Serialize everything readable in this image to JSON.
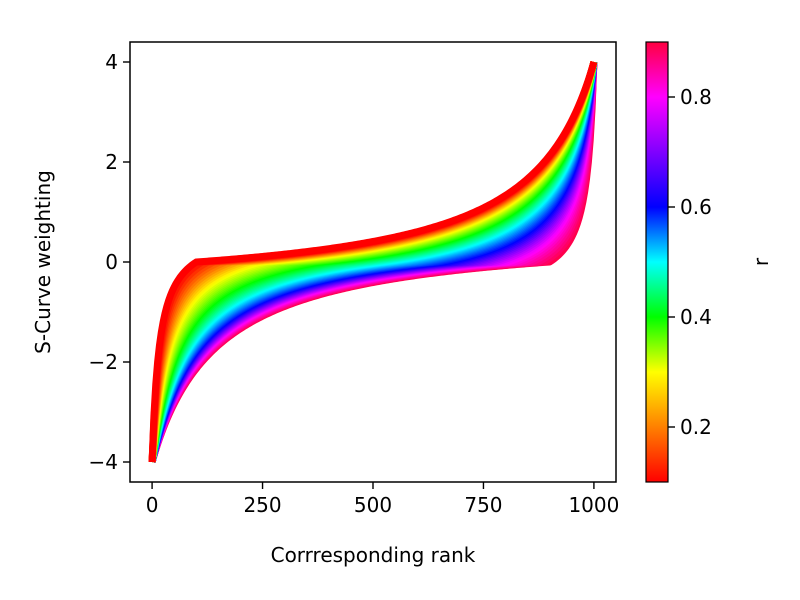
{
  "chart_data": {
    "type": "line",
    "title": "",
    "xlabel": "Corrresponding rank",
    "ylabel": "S-Curve weighting",
    "xlim": [
      -50,
      1050
    ],
    "ylim": [
      -4.4,
      4.4
    ],
    "xticks": [
      0,
      250,
      500,
      750,
      1000
    ],
    "xtick_labels": [
      "0",
      "250",
      "500",
      "750",
      "1000"
    ],
    "yticks": [
      -4,
      -2,
      0,
      2,
      4
    ],
    "ytick_labels": [
      "−4",
      "−2",
      "0",
      "2",
      "4"
    ],
    "grid": false,
    "n_points": 1000,
    "series_family": {
      "description_of_shape": "S-curve y = 4*((x/1000)^a)/(( x/1000)^a + (r/(1-r))^?)",
      "r_values": [
        0.1,
        0.15,
        0.2,
        0.25,
        0.3,
        0.35,
        0.4,
        0.45,
        0.5,
        0.55,
        0.6,
        0.65,
        0.7,
        0.75,
        0.8,
        0.85,
        0.9
      ],
      "y_start": -4,
      "y_end": 4
    },
    "colorbar": {
      "label": "r",
      "range": [
        0.1,
        0.9
      ],
      "ticks": [
        0.2,
        0.4,
        0.6,
        0.8
      ],
      "tick_labels": [
        "0.2",
        "0.4",
        "0.6",
        "0.8"
      ],
      "colormap": "hsv",
      "colors": [
        "#ff0000",
        "#ff8000",
        "#ffff00",
        "#00ff00",
        "#00ffff",
        "#0000ff",
        "#8000ff",
        "#ff00ff",
        "#ff0040"
      ]
    }
  }
}
